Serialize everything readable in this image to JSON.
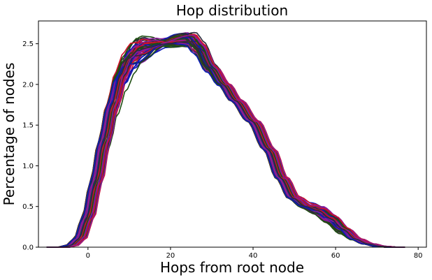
{
  "chart_data": {
    "type": "line",
    "title": "Hop distribution",
    "xlabel": "Hops from root node",
    "ylabel": "Percentage of nodes",
    "xlim": [
      -12,
      82
    ],
    "ylim": [
      0,
      2.78
    ],
    "xticks": [
      0,
      20,
      40,
      60,
      80
    ],
    "yticks": [
      0.0,
      0.5,
      1.0,
      1.5,
      2.0,
      2.5
    ],
    "ytick_labels": [
      "0.0",
      "0.5",
      "1.0",
      "1.5",
      "2.0",
      "2.5"
    ],
    "grid": false,
    "legend": "none",
    "series_colors": [
      "#1f4e12",
      "#0b1ab8",
      "#d0102a",
      "#8b1a9a",
      "#2b2b3b"
    ],
    "base_profile": {
      "x": [
        -10,
        -6,
        -4,
        -2,
        0,
        2,
        4,
        6,
        8,
        10,
        12,
        15,
        18,
        20,
        22,
        25,
        27,
        30,
        33,
        36,
        40,
        44,
        47,
        50,
        53,
        56,
        59,
        62,
        65,
        68,
        71,
        74,
        77
      ],
      "y": [
        0.0,
        0.0,
        0.02,
        0.1,
        0.36,
        0.8,
        1.3,
        1.75,
        2.1,
        2.3,
        2.4,
        2.45,
        2.5,
        2.52,
        2.54,
        2.55,
        2.45,
        2.2,
        2.0,
        1.8,
        1.55,
        1.2,
        0.85,
        0.6,
        0.5,
        0.45,
        0.35,
        0.22,
        0.1,
        0.04,
        0.01,
        0.0,
        0.0
      ]
    }
  }
}
